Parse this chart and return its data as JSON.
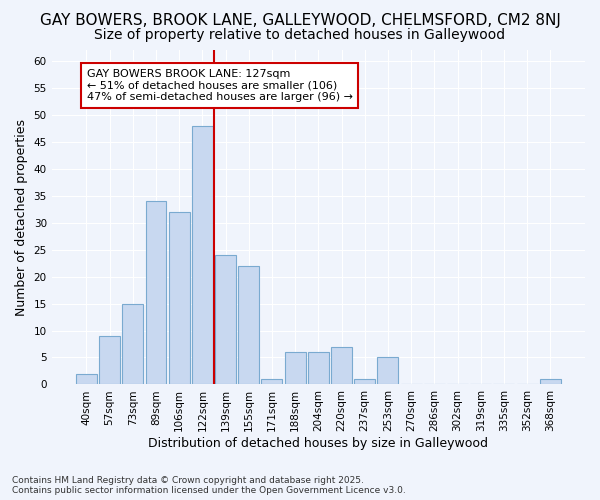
{
  "title": "GAY BOWERS, BROOK LANE, GALLEYWOOD, CHELMSFORD, CM2 8NJ",
  "subtitle": "Size of property relative to detached houses in Galleywood",
  "xlabel": "Distribution of detached houses by size in Galleywood",
  "ylabel": "Number of detached properties",
  "categories": [
    "40sqm",
    "57sqm",
    "73sqm",
    "89sqm",
    "106sqm",
    "122sqm",
    "139sqm",
    "155sqm",
    "171sqm",
    "188sqm",
    "204sqm",
    "220sqm",
    "237sqm",
    "253sqm",
    "270sqm",
    "286sqm",
    "302sqm",
    "319sqm",
    "335sqm",
    "352sqm",
    "368sqm"
  ],
  "values": [
    2,
    9,
    15,
    34,
    32,
    48,
    24,
    22,
    1,
    6,
    6,
    7,
    1,
    5,
    0,
    0,
    0,
    0,
    0,
    0,
    1
  ],
  "bar_color": "#c8d8f0",
  "bar_edge_color": "#7aaad0",
  "red_line_x": 5.5,
  "annotation_text": "GAY BOWERS BROOK LANE: 127sqm\n← 51% of detached houses are smaller (106)\n47% of semi-detached houses are larger (96) →",
  "annotation_box_color": "#ffffff",
  "annotation_box_edge": "#cc0000",
  "ylim": [
    0,
    62
  ],
  "yticks": [
    0,
    5,
    10,
    15,
    20,
    25,
    30,
    35,
    40,
    45,
    50,
    55,
    60
  ],
  "background_color": "#f0f4fc",
  "plot_background": "#f0f4fc",
  "title_fontsize": 11,
  "subtitle_fontsize": 10,
  "footer_text": "Contains HM Land Registry data © Crown copyright and database right 2025.\nContains public sector information licensed under the Open Government Licence v3.0.",
  "grid_color": "#ffffff",
  "red_line_color": "#cc0000"
}
